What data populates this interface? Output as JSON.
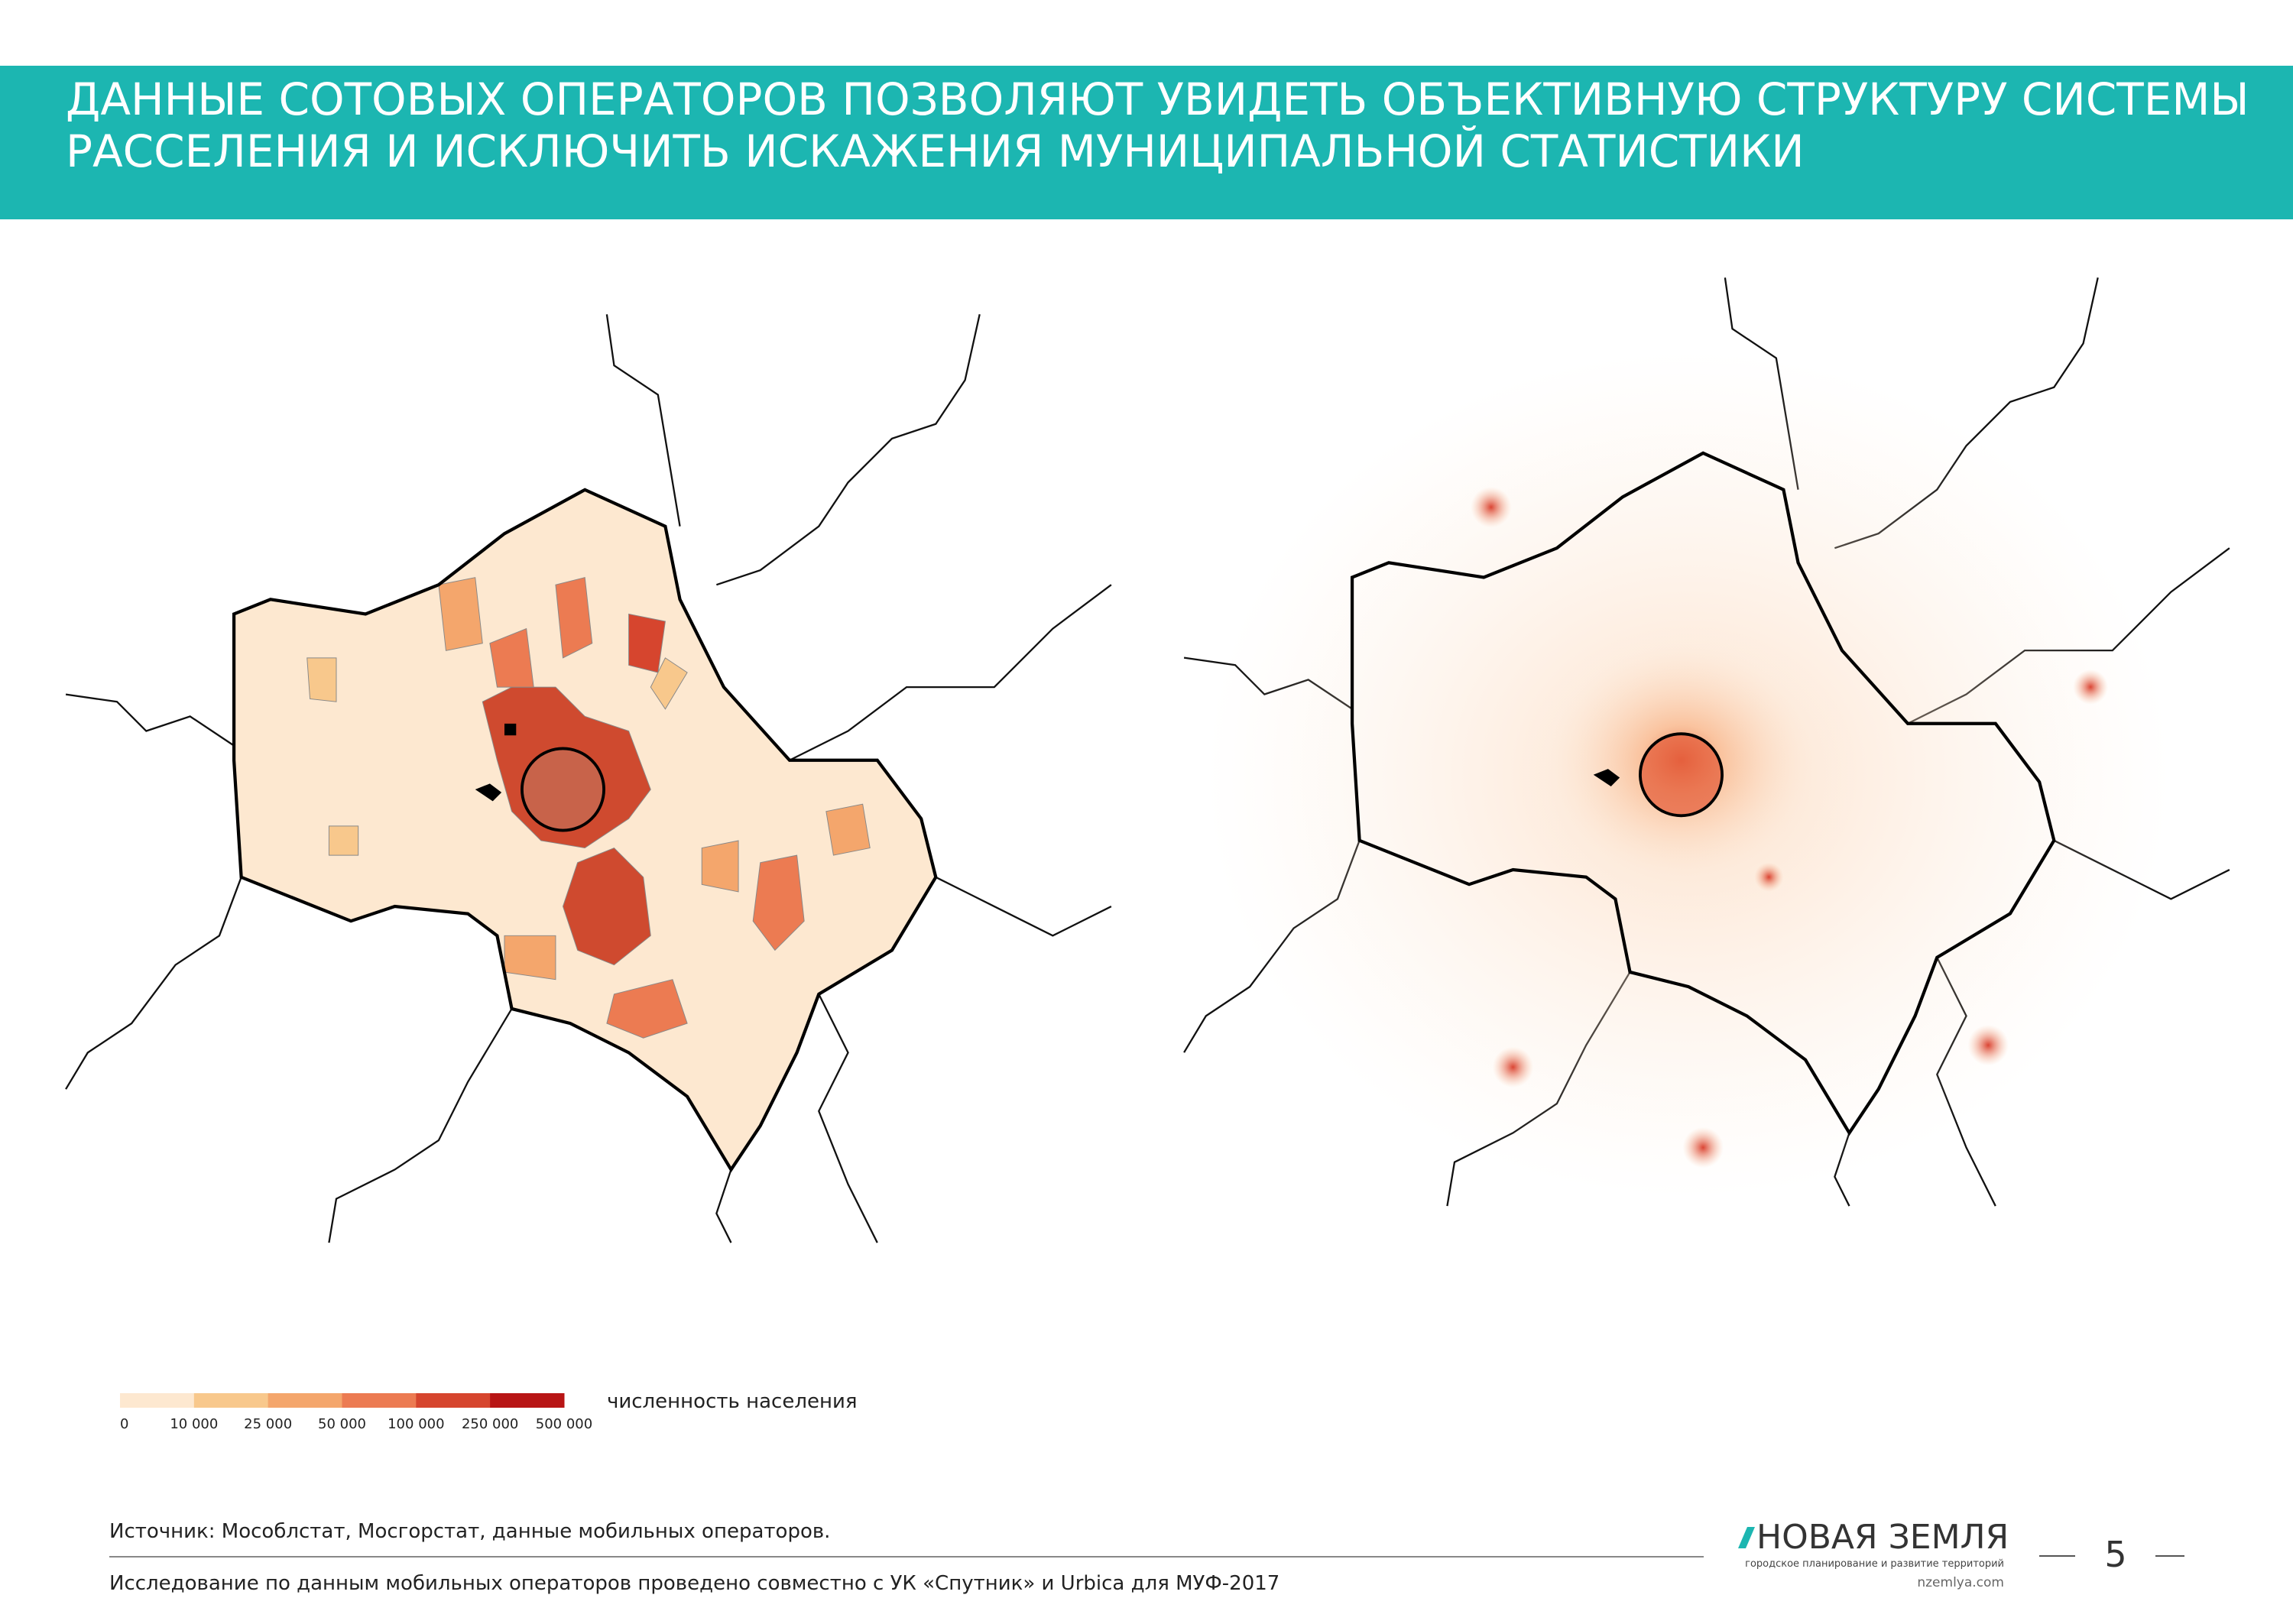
{
  "header": {
    "title_lines": [
      "ДАННЫЕ СОТОВЫХ ОПЕРАТОРОВ ПОЗВОЛЯЮТ УВИДЕТЬ ОБЪЕКТИВНУЮ СТРУКТУРУ СИСТЕМЫ",
      "РАССЕЛЕНИЯ И ИСКЛЮЧИТЬ ИСКАЖЕНИЯ МУНИЦИПАЛЬНОЙ СТАТИСТИКИ"
    ]
  },
  "legend": {
    "label": "численность населения",
    "colors": [
      "#fde8d0",
      "#f8c88c",
      "#f4a66c",
      "#ec7b52",
      "#d6452e",
      "#b81515"
    ],
    "ticks": [
      "0",
      "10 000",
      "25 000",
      "50 000",
      "100 000",
      "250 000",
      "500 000"
    ]
  },
  "footer": {
    "source": "Источник: Мособлстат, Мосгорстат, данные мобильных операторов.",
    "note": "Исследование по данным мобильных операторов проведено совместно с УК «Спутник» и Urbica для МУФ-2017",
    "logo": "НОВАЯ ЗЕМЛЯ",
    "tagline": "городское планирование и развитие территорий",
    "url": "nzemlya.com",
    "page": 5
  }
}
